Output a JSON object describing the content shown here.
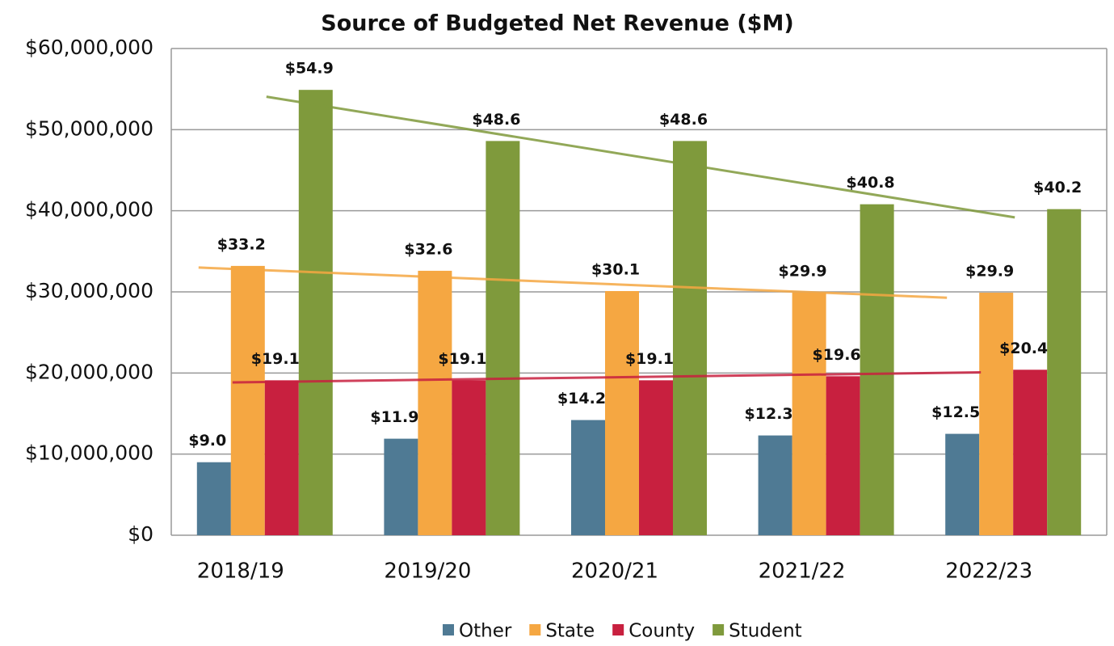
{
  "chart_data": {
    "type": "bar",
    "title": "Source of Budgeted Net Revenue ($M)",
    "categories": [
      "2018/19",
      "2019/20",
      "2020/21",
      "2021/22",
      "2022/23"
    ],
    "series": [
      {
        "name": "Other",
        "color": "#4f7a94",
        "values": [
          9000000,
          11900000,
          14200000,
          12300000,
          12500000
        ],
        "value_labels": [
          "$9.0",
          "$11.9",
          "$14.2",
          "$12.3",
          "$12.5"
        ]
      },
      {
        "name": "State",
        "color": "#f5a742",
        "values": [
          33200000,
          32600000,
          30100000,
          29900000,
          29900000
        ],
        "value_labels": [
          "$33.2",
          "$32.6",
          "$30.1",
          "$29.9",
          "$29.9"
        ]
      },
      {
        "name": "County",
        "color": "#c8203f",
        "values": [
          19100000,
          19100000,
          19100000,
          19600000,
          20400000
        ],
        "value_labels": [
          "$19.1",
          "$19.1",
          "$19.1",
          "$19.6",
          "$20.4"
        ]
      },
      {
        "name": "Student",
        "color": "#7f9a3c",
        "values": [
          54900000,
          48600000,
          48600000,
          40800000,
          40200000
        ],
        "value_labels": [
          "$54.9",
          "$48.6",
          "$48.6",
          "$40.8",
          "$40.2"
        ]
      }
    ],
    "ylim": [
      0,
      60000000
    ],
    "yticks": [
      {
        "value": 0,
        "label": "$0"
      },
      {
        "value": 10000000,
        "label": "$10,000,000"
      },
      {
        "value": 20000000,
        "label": "$20,000,000"
      },
      {
        "value": 30000000,
        "label": "$30,000,000"
      },
      {
        "value": 40000000,
        "label": "$40,000,000"
      },
      {
        "value": 50000000,
        "label": "$50,000,000"
      },
      {
        "value": 60000000,
        "label": "$60,000,000"
      }
    ],
    "grid": true,
    "trendline": true,
    "legend": "bottom"
  }
}
